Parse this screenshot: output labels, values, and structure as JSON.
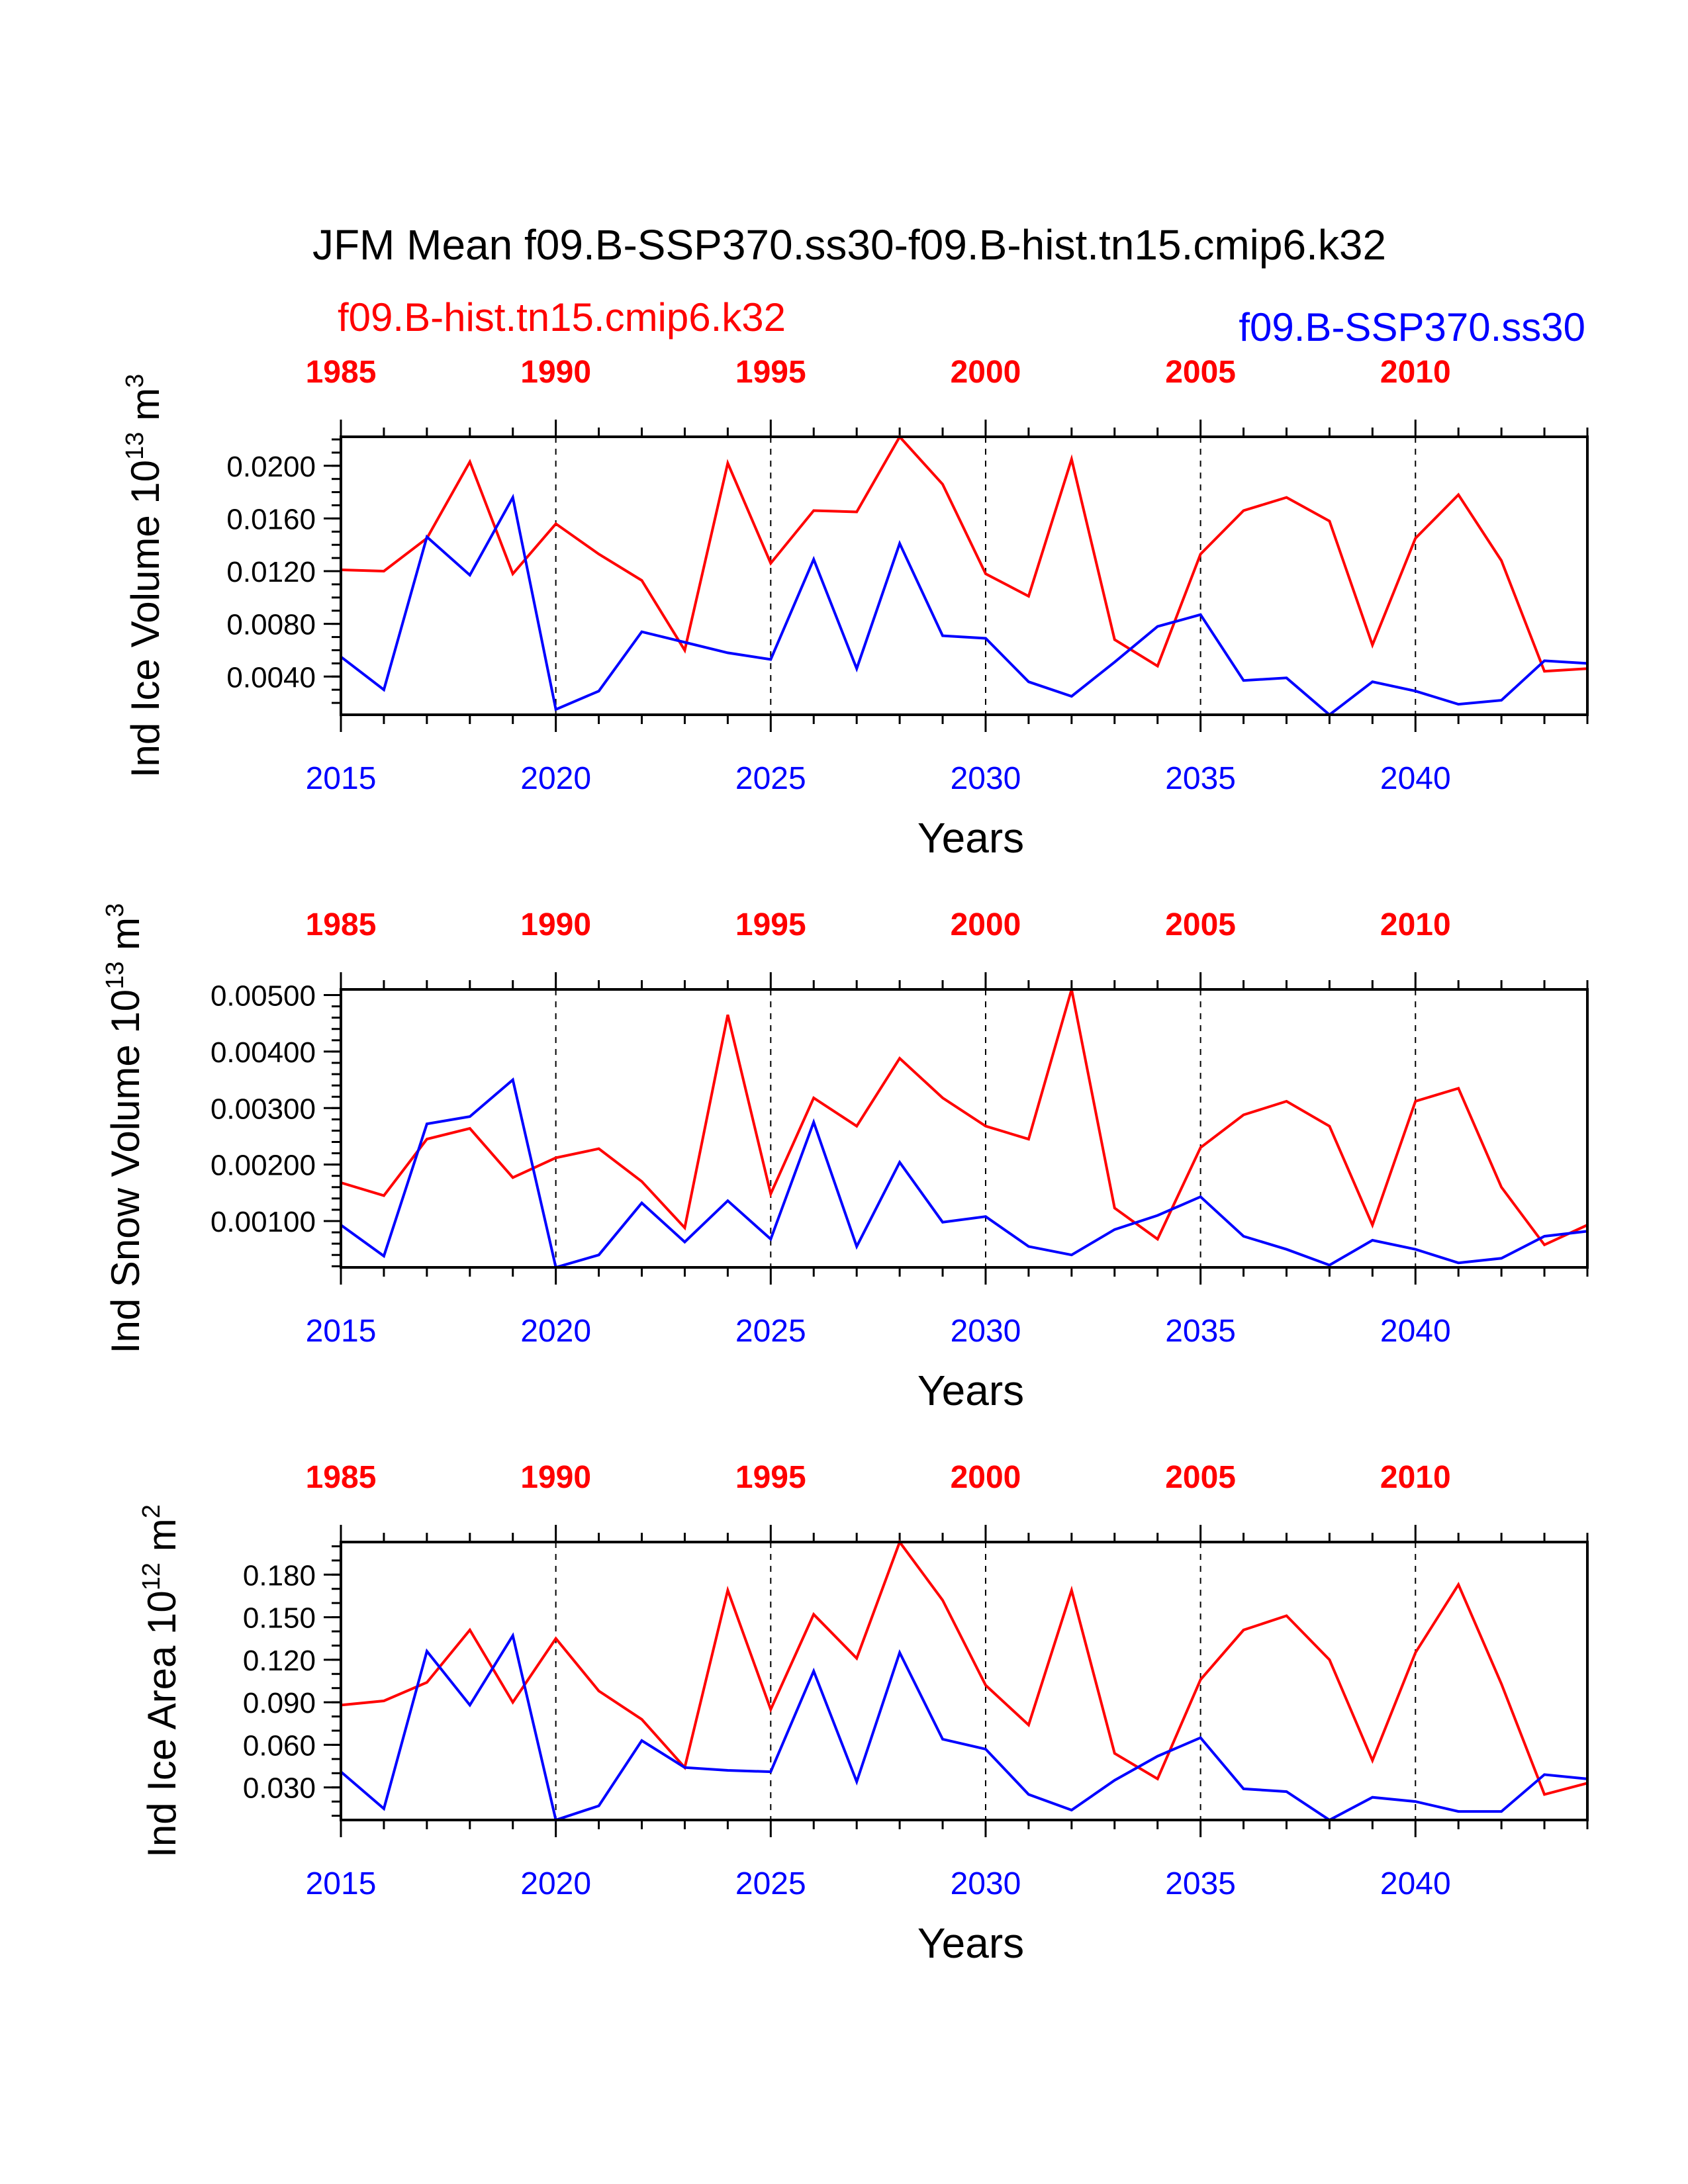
{
  "title": "JFM Mean f09.B-SSP370.ss30-f09.B-hist.tn15.cmip6.k32",
  "legend": {
    "hist_label": "f09.B-hist.tn15.cmip6.k32",
    "ssp_label": "f09.B-SSP370.ss30"
  },
  "colors": {
    "hist": "#ff0000",
    "ssp": "#0000ff",
    "axis": "#000000"
  },
  "chart_data": [
    {
      "type": "line",
      "id": "ice-volume",
      "ylabel_main": "Ind Ice Volume 10",
      "ylabel_exp": "13",
      "ylabel_unit": " m",
      "ylabel_unit_exp": "3",
      "xlabel": "Years",
      "x": [
        2015,
        2016,
        2017,
        2018,
        2019,
        2020,
        2021,
        2022,
        2023,
        2024,
        2025,
        2026,
        2027,
        2028,
        2029,
        2030,
        2031,
        2032,
        2033,
        2034,
        2035,
        2036,
        2037,
        2038,
        2039,
        2040,
        2041,
        2042,
        2043,
        2044
      ],
      "x_range": [
        2015,
        2044
      ],
      "top_offset_years": -30,
      "top_ticks": [
        "1985",
        "1990",
        "1995",
        "2000",
        "2005",
        "2010"
      ],
      "bottom_ticks": [
        "2015",
        "2020",
        "2025",
        "2030",
        "2035",
        "2040"
      ],
      "ylim": [
        0.0011,
        0.0222
      ],
      "yticks": [
        0.004,
        0.008,
        0.012,
        0.016,
        0.02
      ],
      "ytick_labels": [
        "0.0040",
        "0.0080",
        "0.0120",
        "0.0160",
        "0.0200"
      ],
      "yminor_step": 0.001,
      "series": [
        {
          "name": "f09.B-hist.tn15.cmip6.k32",
          "color": "#ff0000",
          "values": [
            0.0121,
            0.012,
            0.0145,
            0.0203,
            0.0118,
            0.0156,
            0.0133,
            0.0113,
            0.006,
            0.0202,
            0.0126,
            0.0166,
            0.0165,
            0.0222,
            0.0186,
            0.0118,
            0.0101,
            0.0205,
            0.0068,
            0.0048,
            0.0133,
            0.0166,
            0.0176,
            0.0158,
            0.0064,
            0.0145,
            0.0178,
            0.0128,
            0.0044,
            0.0046
          ]
        },
        {
          "name": "f09.B-SSP370.ss30",
          "color": "#0000ff",
          "values": [
            0.0055,
            0.003,
            0.0146,
            0.0117,
            0.0176,
            0.0015,
            0.0029,
            0.0074,
            0.0066,
            0.0058,
            0.0053,
            0.0129,
            0.0046,
            0.0141,
            0.0071,
            0.0069,
            0.0036,
            0.0025,
            0.0051,
            0.0078,
            0.0087,
            0.0037,
            0.0039,
            0.0011,
            0.0036,
            0.0029,
            0.0019,
            0.0022,
            0.0052,
            0.005
          ]
        }
      ]
    },
    {
      "type": "line",
      "id": "snow-volume",
      "ylabel_main": "Ind Snow Volume 10",
      "ylabel_exp": "13",
      "ylabel_unit": " m",
      "ylabel_unit_exp": "3",
      "xlabel": "Years",
      "x": [
        2015,
        2016,
        2017,
        2018,
        2019,
        2020,
        2021,
        2022,
        2023,
        2024,
        2025,
        2026,
        2027,
        2028,
        2029,
        2030,
        2031,
        2032,
        2033,
        2034,
        2035,
        2036,
        2037,
        2038,
        2039,
        2040,
        2041,
        2042,
        2043,
        2044
      ],
      "x_range": [
        2015,
        2044
      ],
      "top_offset_years": -30,
      "top_ticks": [
        "1985",
        "1990",
        "1995",
        "2000",
        "2005",
        "2010"
      ],
      "bottom_ticks": [
        "2015",
        "2020",
        "2025",
        "2030",
        "2035",
        "2040"
      ],
      "ylim": [
        0.00018,
        0.0051
      ],
      "yticks": [
        0.001,
        0.002,
        0.003,
        0.004,
        0.005
      ],
      "ytick_labels": [
        "0.00100",
        "0.00200",
        "0.00300",
        "0.00400",
        "0.00500"
      ],
      "yminor_step": 0.0002,
      "series": [
        {
          "name": "f09.B-hist.tn15.cmip6.k32",
          "color": "#ff0000",
          "values": [
            0.00168,
            0.00145,
            0.00245,
            0.00264,
            0.00177,
            0.00212,
            0.00228,
            0.0017,
            0.00088,
            0.00465,
            0.00148,
            0.00318,
            0.00268,
            0.00388,
            0.00318,
            0.00268,
            0.00245,
            0.0051,
            0.00123,
            0.00068,
            0.0023,
            0.00288,
            0.00312,
            0.00268,
            0.00093,
            0.00312,
            0.00335,
            0.0016,
            0.00058,
            0.00093
          ]
        },
        {
          "name": "f09.B-SSP370.ss30",
          "color": "#0000ff",
          "values": [
            0.00093,
            0.00038,
            0.00272,
            0.00285,
            0.0035,
            0.00018,
            0.0004,
            0.00132,
            0.00063,
            0.00136,
            0.00068,
            0.00275,
            0.00055,
            0.00204,
            0.00098,
            0.00108,
            0.00055,
            0.0004,
            0.00085,
            0.0011,
            0.00143,
            0.00073,
            0.0005,
            0.00022,
            0.00066,
            0.0005,
            0.00026,
            0.00034,
            0.00073,
            0.00082
          ]
        }
      ]
    },
    {
      "type": "line",
      "id": "ice-area",
      "ylabel_main": "Ind Ice Area 10",
      "ylabel_exp": "12",
      "ylabel_unit": " m",
      "ylabel_unit_exp": "2",
      "xlabel": "Years",
      "x": [
        2015,
        2016,
        2017,
        2018,
        2019,
        2020,
        2021,
        2022,
        2023,
        2024,
        2025,
        2026,
        2027,
        2028,
        2029,
        2030,
        2031,
        2032,
        2033,
        2034,
        2035,
        2036,
        2037,
        2038,
        2039,
        2040,
        2041,
        2042,
        2043,
        2044
      ],
      "x_range": [
        2015,
        2044
      ],
      "top_offset_years": -30,
      "top_ticks": [
        "1985",
        "1990",
        "1995",
        "2000",
        "2005",
        "2010"
      ],
      "bottom_ticks": [
        "2015",
        "2020",
        "2025",
        "2030",
        "2035",
        "2040"
      ],
      "ylim": [
        0.007,
        0.203
      ],
      "yticks": [
        0.03,
        0.06,
        0.09,
        0.12,
        0.15,
        0.18
      ],
      "ytick_labels": [
        "0.030",
        "0.060",
        "0.090",
        "0.120",
        "0.150",
        "0.180"
      ],
      "yminor_step": 0.01,
      "series": [
        {
          "name": "f09.B-hist.tn15.cmip6.k32",
          "color": "#ff0000",
          "values": [
            0.088,
            0.091,
            0.104,
            0.141,
            0.09,
            0.135,
            0.098,
            0.078,
            0.044,
            0.169,
            0.085,
            0.152,
            0.121,
            0.203,
            0.162,
            0.102,
            0.074,
            0.169,
            0.054,
            0.036,
            0.106,
            0.141,
            0.151,
            0.12,
            0.049,
            0.125,
            0.173,
            0.103,
            0.025,
            0.033
          ]
        },
        {
          "name": "f09.B-SSP370.ss30",
          "color": "#0000ff",
          "values": [
            0.041,
            0.015,
            0.126,
            0.088,
            0.137,
            0.007,
            0.017,
            0.063,
            0.044,
            0.042,
            0.041,
            0.112,
            0.034,
            0.125,
            0.064,
            0.057,
            0.025,
            0.014,
            0.035,
            0.052,
            0.065,
            0.029,
            0.027,
            0.007,
            0.023,
            0.02,
            0.013,
            0.013,
            0.039,
            0.036
          ]
        }
      ]
    }
  ]
}
